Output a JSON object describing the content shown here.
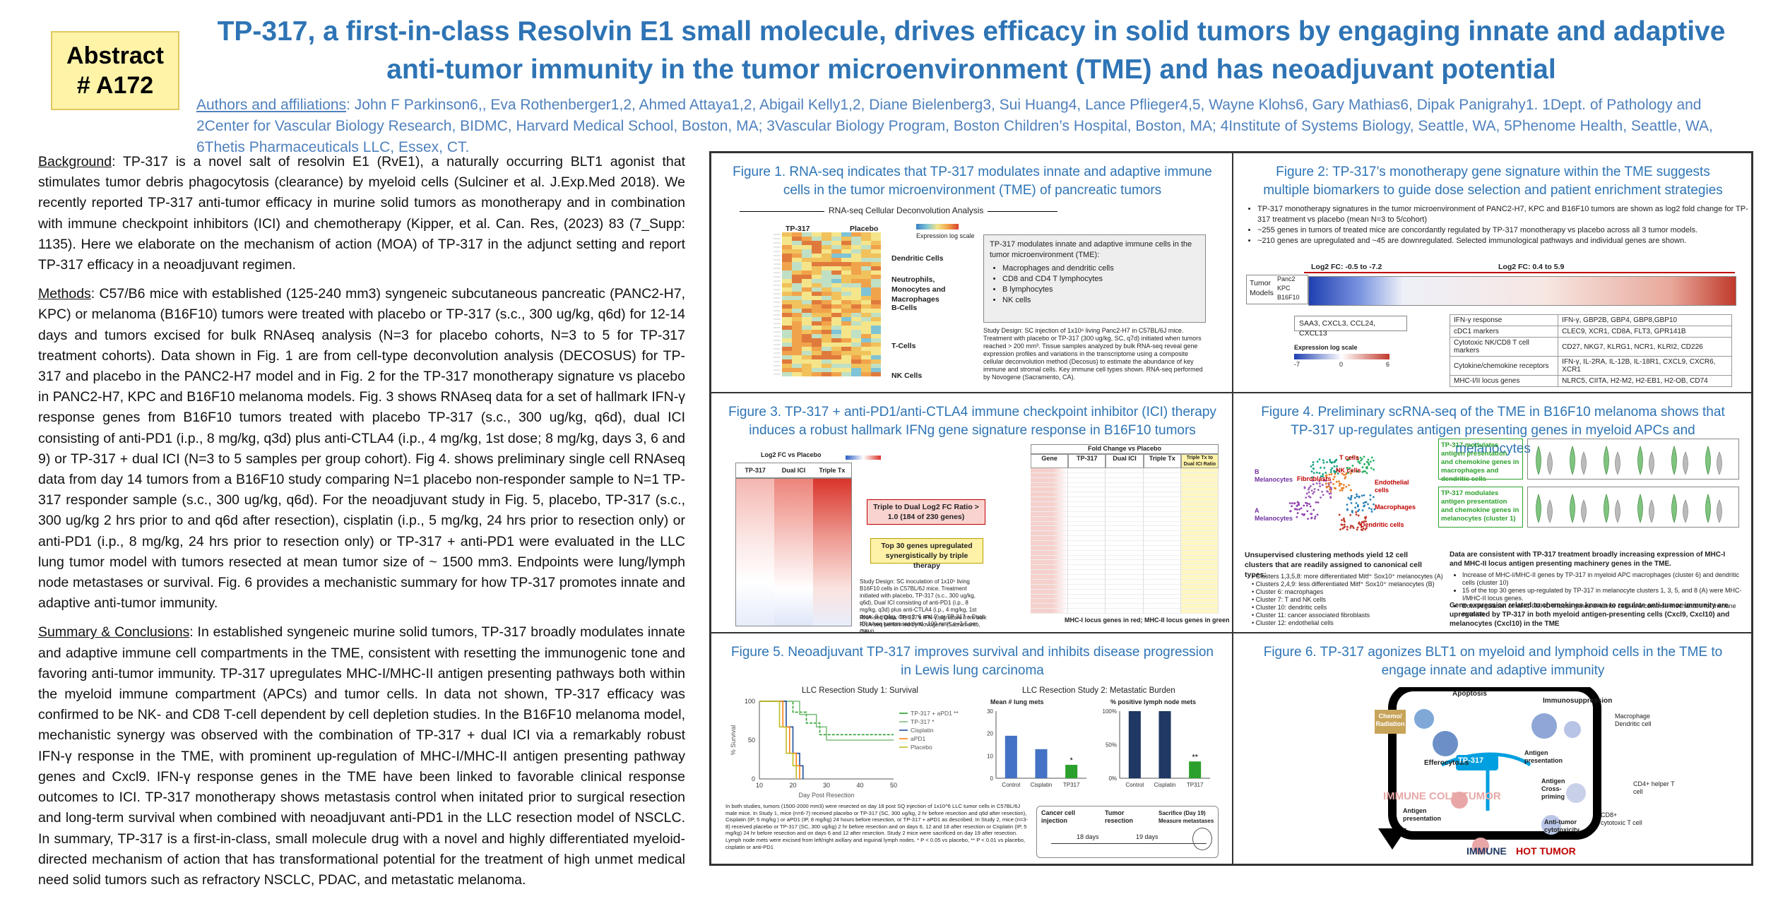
{
  "badge": {
    "line1": "Abstract",
    "line2": "# A172"
  },
  "title": {
    "line1": "TP-317, a first-in-class Resolvin E1 small molecule, drives efficacy in solid tumors by engaging innate and adaptive",
    "line2": "anti-tumor immunity in the tumor microenvironment (TME) and has neoadjuvant potential"
  },
  "authors": {
    "label": "Authors and affiliations",
    "text": ": John F Parkinson6,, Eva Rothenberger1,2, Ahmed Attaya1,2, Abigail Kelly1,2, Diane Bielenberg3, Sui Huang4, Lance Pflieger4,5, Wayne Klohs6, Gary Mathias6, Dipak Panigrahy1. 1Dept. of Pathology and 2Center for Vascular Biology Research, BIDMC, Harvard Medical School, Boston, MA; 3Vascular Biology Program, Boston Children’s Hospital, Boston, MA; 4Institute of Systems Biology, Seattle, WA, 5Phenome Health, Seattle, WA, 6Thetis Pharmaceuticals LLC, Essex, CT."
  },
  "background": {
    "heading": "Background",
    "text": ": TP-317 is a novel salt of resolvin E1 (RvE1), a naturally occurring BLT1 agonist that stimulates tumor debris phagocytosis (clearance) by myeloid cells (Sulciner et al. J.Exp.Med 2018). We recently reported TP-317 anti-tumor efficacy in murine solid tumors as monotherapy and in combination with immune checkpoint inhibitors (ICI) and chemotherapy (Kipper, et al. Can. Res, (2023) 83 (7_Supp: 1135). Here we elaborate on the mechanism of action (MOA) of TP-317 in the adjunct setting and report TP-317 efficacy in a neoadjuvant regimen."
  },
  "methods": {
    "heading": "Methods",
    "text": ": C57/B6 mice with established (125-240 mm3) syngeneic subcutaneous pancreatic (PANC2-H7, KPC) or melanoma (B16F10) tumors were treated with placebo or TP-317 (s.c., 300 ug/kg, q6d) for 12-14 days and tumors excised for bulk RNAseq analysis (N=3 for placebo cohorts, N=3 to 5 for TP-317 treatment cohorts). Data shown in Fig. 1 are from cell-type deconvolution analysis (DECOSUS) for TP-317 and placebo in the PANC2-H7 model and in Fig. 2 for the TP-317 monotherapy signature vs placebo in PANC2-H7, KPC and B16F10 melanoma models. Fig. 3 shows RNAseq data for a set of hallmark IFN-γ response genes from B16F10 tumors treated with placebo TP-317 (s.c., 300 ug/kg, q6d), dual ICI consisting of anti-PD1 (i.p., 8 mg/kg, q3d) plus anti-CTLA4 (i.p., 4 mg/kg, 1st dose; 8 mg/kg, days 3, 6 and 9) or TP-317 + dual ICI (N=3 to 5 samples per group cohort). Fig 4. shows preliminary single cell RNAseq data from day 14 tumors from a B16F10 study comparing N=1 placebo non-responder sample to N=1 TP-317 responder sample (s.c., 300 ug/kg, q6d). For the neoadjuvant study in Fig. 5, placebo, TP-317 (s.c., 300 ug/kg 2 hrs prior to and q6d after resection), cisplatin (i.p., 5 mg/kg, 24 hrs prior to resection only) or anti-PD1 (i.p., 8 mg/kg, 24 hrs prior to resection only) or TP-317 + anti-PD1 were evaluated in the LLC lung tumor model with tumors resected at mean tumor size of ~ 1500 mm3. Endpoints were lung/lymph node metastases or survival. Fig. 6 provides a mechanistic summary for how TP-317 promotes innate and adaptive anti-tumor immunity."
  },
  "summary": {
    "heading": "Summary & Conclusions",
    "text": ": In established syngeneic murine solid tumors, TP-317 broadly modulates innate and adaptive immune cell compartments in the TME, consistent with resetting the immunogenic tone and favoring anti-tumor immunity. TP-317 upregulates MHC-I/MHC-II antigen presenting pathways both within the myeloid immune compartment (APCs) and tumor cells. In data not shown, TP-317 efficacy was confirmed to be NK- and CD8 T-cell dependent by cell depletion studies. In the B16F10 melanoma model, mechanistic synergy was observed with the combination of TP-317 + dual ICI via a remarkably robust IFN-γ response in the TME, with prominent up-regulation of MHC-I/MHC-II antigen presenting pathway genes and Cxcl9. IFN-γ response genes in the TME have been linked to favorable clinical response outcomes to ICI. TP-317 monotherapy shows metastasis control when initated prior to surgical resection and long-term survival when combined with neoadjuvant anti-PD1 in the LLC resection model of NSCLC. In summary, TP-317 is a first-in-class, small molecule drug with a novel and highly differentiated myeloid-directed mechanism of action that has transformational potential for the treatment of high unmet medical need solid tumors such as refractory NSCLC, PDAC, and metastatic melanoma."
  },
  "fig1": {
    "title": "Figure 1. RNA-seq indicates that TP-317 modulates innate and adaptive immune cells in the tumor microenvironment (TME) of pancreatic tumors",
    "subtitle": "RNA-seq Cellular Deconvolution Analysis",
    "col1": "TP-317",
    "col2": "Placebo",
    "groups": [
      "Dendritic Cells",
      "Neutrophils, Monocytes and Macrophages",
      "B-Cells",
      "T-Cells",
      "NK Cells"
    ],
    "scale_label": "Expression log scale",
    "box_intro": "TP-317 modulates innate and adaptive immune cells in the tumor microenvironment (TME):",
    "box_items": [
      "Macrophages and dendritic cells",
      "CD8 and CD4 T lymphocytes",
      "B lymphocytes",
      "NK cells"
    ],
    "design": "Study Design: SC injection of 1x10⁶ living Panc2-H7 in C57BL/6J mice. Treatment with placebo or TP-317 (300 ug/kg, SC, q7d) initiated when tumors reached > 200 mm³. Tissue samples analyzed by bulk RNA-seq reveal gene expression profiles and variations in the transcriptome using a composite cellular deconvolution method (Decosus) to estimate the abundance of key immune and stromal cells. Key immune cell types shown. RNA-seq performed by Novogene (Sacramento, CA)."
  },
  "fig2": {
    "title": "Figure 2: TP-317’s monotherapy gene signature within the TME suggests multiple biomarkers to guide dose selection and patient enrichment strategies",
    "bullets": [
      "TP-317 monotherapy signatures in the tumor microenvironment of PANC2-H7, KPC and B16F10 tumors are shown as log2 fold change for TP-317 treatment vs placebo (mean N=3 to 5/cohort)",
      "~255 genes in tumors of treated mice are concordantly regulated by TP-317 monotherapy vs placebo across all 3 tumor models.",
      "~210 genes are upregulated and ~45 are downregulated. Selected immunological pathways and individual genes are shown."
    ],
    "fc_left": "Log2 FC: -0.5 to -7.2",
    "fc_right": "Log2 FC: 0.4 to 5.9",
    "models_label": "Tumor Models",
    "models": [
      "Panc2",
      "KPC",
      "B16F10"
    ],
    "down_genes": "SAA3, CXCL3, CCL24, CXCL13",
    "scale_label": "Expression log scale",
    "scale_ticks": [
      "-7",
      "0",
      "6"
    ],
    "table": [
      [
        "IFN-γ response",
        "IFN-γ, GBP2B, GBP4, GBP8,GBP10"
      ],
      [
        "cDC1 markers",
        "CLEC9, XCR1, CD8A, FLT3, GPR141B"
      ],
      [
        "Cytotoxic NK/CD8 T cell markers",
        "CD27, NKG7, KLRG1, NCR1, KLRI2, CD226"
      ],
      [
        "Cytokine/chemokine receptors",
        "IFN-γ, IL-2RA, IL-12B, IL-18R1, CXCL9, CXCR6, XCR1"
      ],
      [
        "MHC-I/II locus genes",
        "NLRC5, CIITA, H2-M2, H2-EB1, H2-OB, CD74"
      ]
    ]
  },
  "fig3": {
    "title": "Figure 3. TP-317 + anti-PD1/anti-CTLA4 immune checkpoint inhibitor (ICI) therapy induces a robust hallmark IFNg gene signature response in B16F10 tumors",
    "heatmap_label": "Log2 FC vs Placebo",
    "cols": [
      "TP-317",
      "Dual ICI",
      "Triple Tx"
    ],
    "callout1": "Triple to Dual Log2 FC Ratio > 1.0 (184 of 230 genes)",
    "callout2": "Top 30 genes upregulated synergistically by triple therapy",
    "table_header": "Fold Change vs Placebo",
    "table_cols": [
      "Gene",
      "TP-317",
      "Dual ICI",
      "Triple Tx",
      "Triple Tx to Dual ICI Ratio"
    ],
    "footer": "MHC-I locus genes in red; MHC-II locus genes in green",
    "design": "Study Design: SC inoculation of 1x10⁵ living B16F10 cells in C57BL/6J mice. Treatment initiated with placebo, TP-317 (s.c., 300 ug/kg, q6d), Dual ICI consisting of anti-PD1 (i.p., 8 mg/kg, q3d) plus anti-CTLA4 (i.p., 4 mg/kg, 1st dose; 8 mg/kg, days 3, 6 and 9) or TP-317 + Dual ICI when tumors reached ~100 mm³. n=3-5 per group.",
    "rnaseq": "RNA-seq Data: TP-317's IFN-γ signature from bulk RNA-seq performed by Novogene (Sacramento, CA)"
  },
  "fig4": {
    "title": "Figure 4. Preliminary scRNA-seq of the TME in B16F10 melanoma shows that TP-317 up-regulates antigen presenting genes in myeloid APCs and melanocytes",
    "umap_labels": [
      "T cells",
      "NK cells",
      "Endothelial cells",
      "Macrophages",
      "Dendritic cells",
      "Fibroblasts",
      "B Melanocytes",
      "A Melanocytes"
    ],
    "green1": "TP-317 modulates antigen presentation and chemokine genes in macrophages and dendritic cells",
    "green2": "TP-317 modulates antigen presentation and chemokine genes in melanocytes (cluster 1)",
    "unsup_title": "Unsupervised clustering methods yield 12 cell clusters that are readily assigned to canonical cell types:",
    "clusters": [
      [
        "Clusters 1,3,5,8:",
        "more differentiated Mitf⁺ Sox10⁺ melanocytes (A)"
      ],
      [
        "Clusters 2,4,9:",
        "less differentiated Mitf⁺ Sox10⁺ melanocytes (B)"
      ],
      [
        "Cluster 6:",
        "macrophages"
      ],
      [
        "Cluster 7:",
        "T and NK cells"
      ],
      [
        "Cluster 10:",
        "dendritic cells"
      ],
      [
        "Cluster 11:",
        "cancer associated fibroblasts"
      ],
      [
        "Cluster 12:",
        "endothelial cells"
      ]
    ],
    "right_title": "Data are consistent with TP-317 treatment broadly increasing expression of MHC-I and MHC-II locus antigen presenting machinery genes in the TME.",
    "right_items": [
      "Increase of MHC-I/MHC-II genes by TP-317 in myeloid APC macrophages (cluster 6) and dendritic cells (cluster 10)",
      "15 of the top 30 genes up-regulated by TP-317 in melanocyte clusters 1, 3, 5, and 8 (A) were MHC-I/MHC-II locus genes.",
      "Downregulation of MHC-I/MHC-II locus genes in tumor cells is a common mechanism for immune evasion"
    ],
    "right_bold": "Gene expression related to chemokines known to regulate anti-tumor immunity are upregulated by TP-317 in both myeloid antigen-presenting cells (Cxcl9, Cxcl10) and melanocytes (Cxcl10) in the TME"
  },
  "fig5": {
    "title": "Figure 5. Neoadjuvant TP-317 improves survival and inhibits disease progression in Lewis lung carcinoma",
    "survival_title": "LLC Resection Study 1: Survival",
    "metastatic_title": "LLC Resection Study 2: Metastatic Burden",
    "bar1_title": "Mean # lung mets",
    "bar2_title": "% positive lymph node mets",
    "design": "In both studies, tumors (1500-2000 mm3) were resected on day 18 post SQ injection of 1x10^6 LLC tumor cells in C57BL/6J male mice. In Study 1, mice (n=6-7) received placebo or TP-317 (SC, 300 ug/kg, 2 hr before resection and q6d after resection), Cisplatin (IP, 5 mg/kg ) or aPD1 (IP, 8 mg/kg) 24 hours before resection, or TP-317 + aPD1 as described. In Study 2, mice (n=3-8) received placebo or TP-317 (SC, 300 ug/kg) 2 hr before resection and on days 6, 12 and 18 after resection or Cisplatin (IP, 5 mg/kg) 24 hr before resection and on days 6 and 12 after resection. Study 2 mice were sacrificed on day 19 after resection. Lymph node mets were excised from left/right axillary and inguinal lymph nodes. * P < 0.05 vs placebo, ** P < 0.01 vs placebo, cisplatin or anti-PD1",
    "timeline": [
      "Cancer cell injection",
      "Tumor resection",
      "Sacrifice (Day 19) Measure metastases",
      "18 days",
      "19 days"
    ]
  },
  "fig6": {
    "title": "Figure 6. TP-317 agonizes BLT1 on myeloid and lymphoid cells in the TME to engage innate and adaptive immunity",
    "labels": [
      "Apoptosis",
      "Chemo/ Radiation",
      "Efferocytosis",
      "Immunosuppression",
      "Macrophage Dendritic cell",
      "TP-317",
      "Antigen presentation",
      "Antigen Cross-priming",
      "IMMUNE COLD TUMOR",
      "Antigen presentation",
      "CD4+ helper T cell",
      "CD8+ cytotoxic T cell",
      "Anti-tumor cytotoxicity",
      "IMMUNE",
      "HOT TUMOR"
    ]
  },
  "chart_data": [
    {
      "type": "line",
      "title": "LLC Resection Study 1: Survival",
      "xlabel": "Day Post Resection",
      "ylabel": "% Survival",
      "xlim": [
        10,
        50
      ],
      "ylim": [
        0,
        100
      ],
      "series": [
        {
          "name": "TP-317 + aPD1 **",
          "color": "#2ca02c",
          "x": [
            10,
            17,
            20,
            24,
            28,
            50
          ],
          "y": [
            100,
            100,
            86,
            72,
            57,
            57
          ]
        },
        {
          "name": "TP-317 *",
          "color": "#7fbf7f",
          "x": [
            10,
            18,
            22,
            27,
            30,
            50
          ],
          "y": [
            100,
            100,
            83,
            67,
            50,
            50
          ]
        },
        {
          "name": "Cisplatin",
          "color": "#1f4e9a",
          "x": [
            10,
            16,
            18,
            20,
            22,
            23
          ],
          "y": [
            100,
            100,
            67,
            33,
            17,
            0
          ]
        },
        {
          "name": "aPD1",
          "color": "#ff7f0e",
          "x": [
            10,
            15,
            17,
            19,
            21,
            22
          ],
          "y": [
            100,
            100,
            67,
            33,
            17,
            0
          ]
        },
        {
          "name": "Placebo",
          "color": "#bcbd22",
          "x": [
            10,
            14,
            16,
            18,
            20,
            21
          ],
          "y": [
            100,
            100,
            67,
            33,
            17,
            0
          ]
        }
      ]
    },
    {
      "type": "bar",
      "title": "Mean # lung mets",
      "categories": [
        "Control",
        "Cisplatin",
        "TP317"
      ],
      "values": [
        19,
        13,
        6
      ],
      "ylim": [
        0,
        30
      ],
      "yticks": [
        "0",
        "10",
        "20",
        "30"
      ],
      "annotations": [
        "",
        "",
        "*"
      ],
      "colors": [
        "#4472c4",
        "#4472c4",
        "#2ca02c"
      ]
    },
    {
      "type": "bar",
      "title": "% positive lymph node mets",
      "categories": [
        "Control",
        "Cisplatin",
        "TP317"
      ],
      "values": [
        100,
        100,
        25
      ],
      "ylim": [
        0,
        100
      ],
      "yticks": [
        "0%",
        "50%",
        "100%"
      ],
      "annotations": [
        "",
        "",
        "**"
      ],
      "colors": [
        "#1f3864",
        "#1f3864",
        "#2ca02c"
      ]
    }
  ]
}
